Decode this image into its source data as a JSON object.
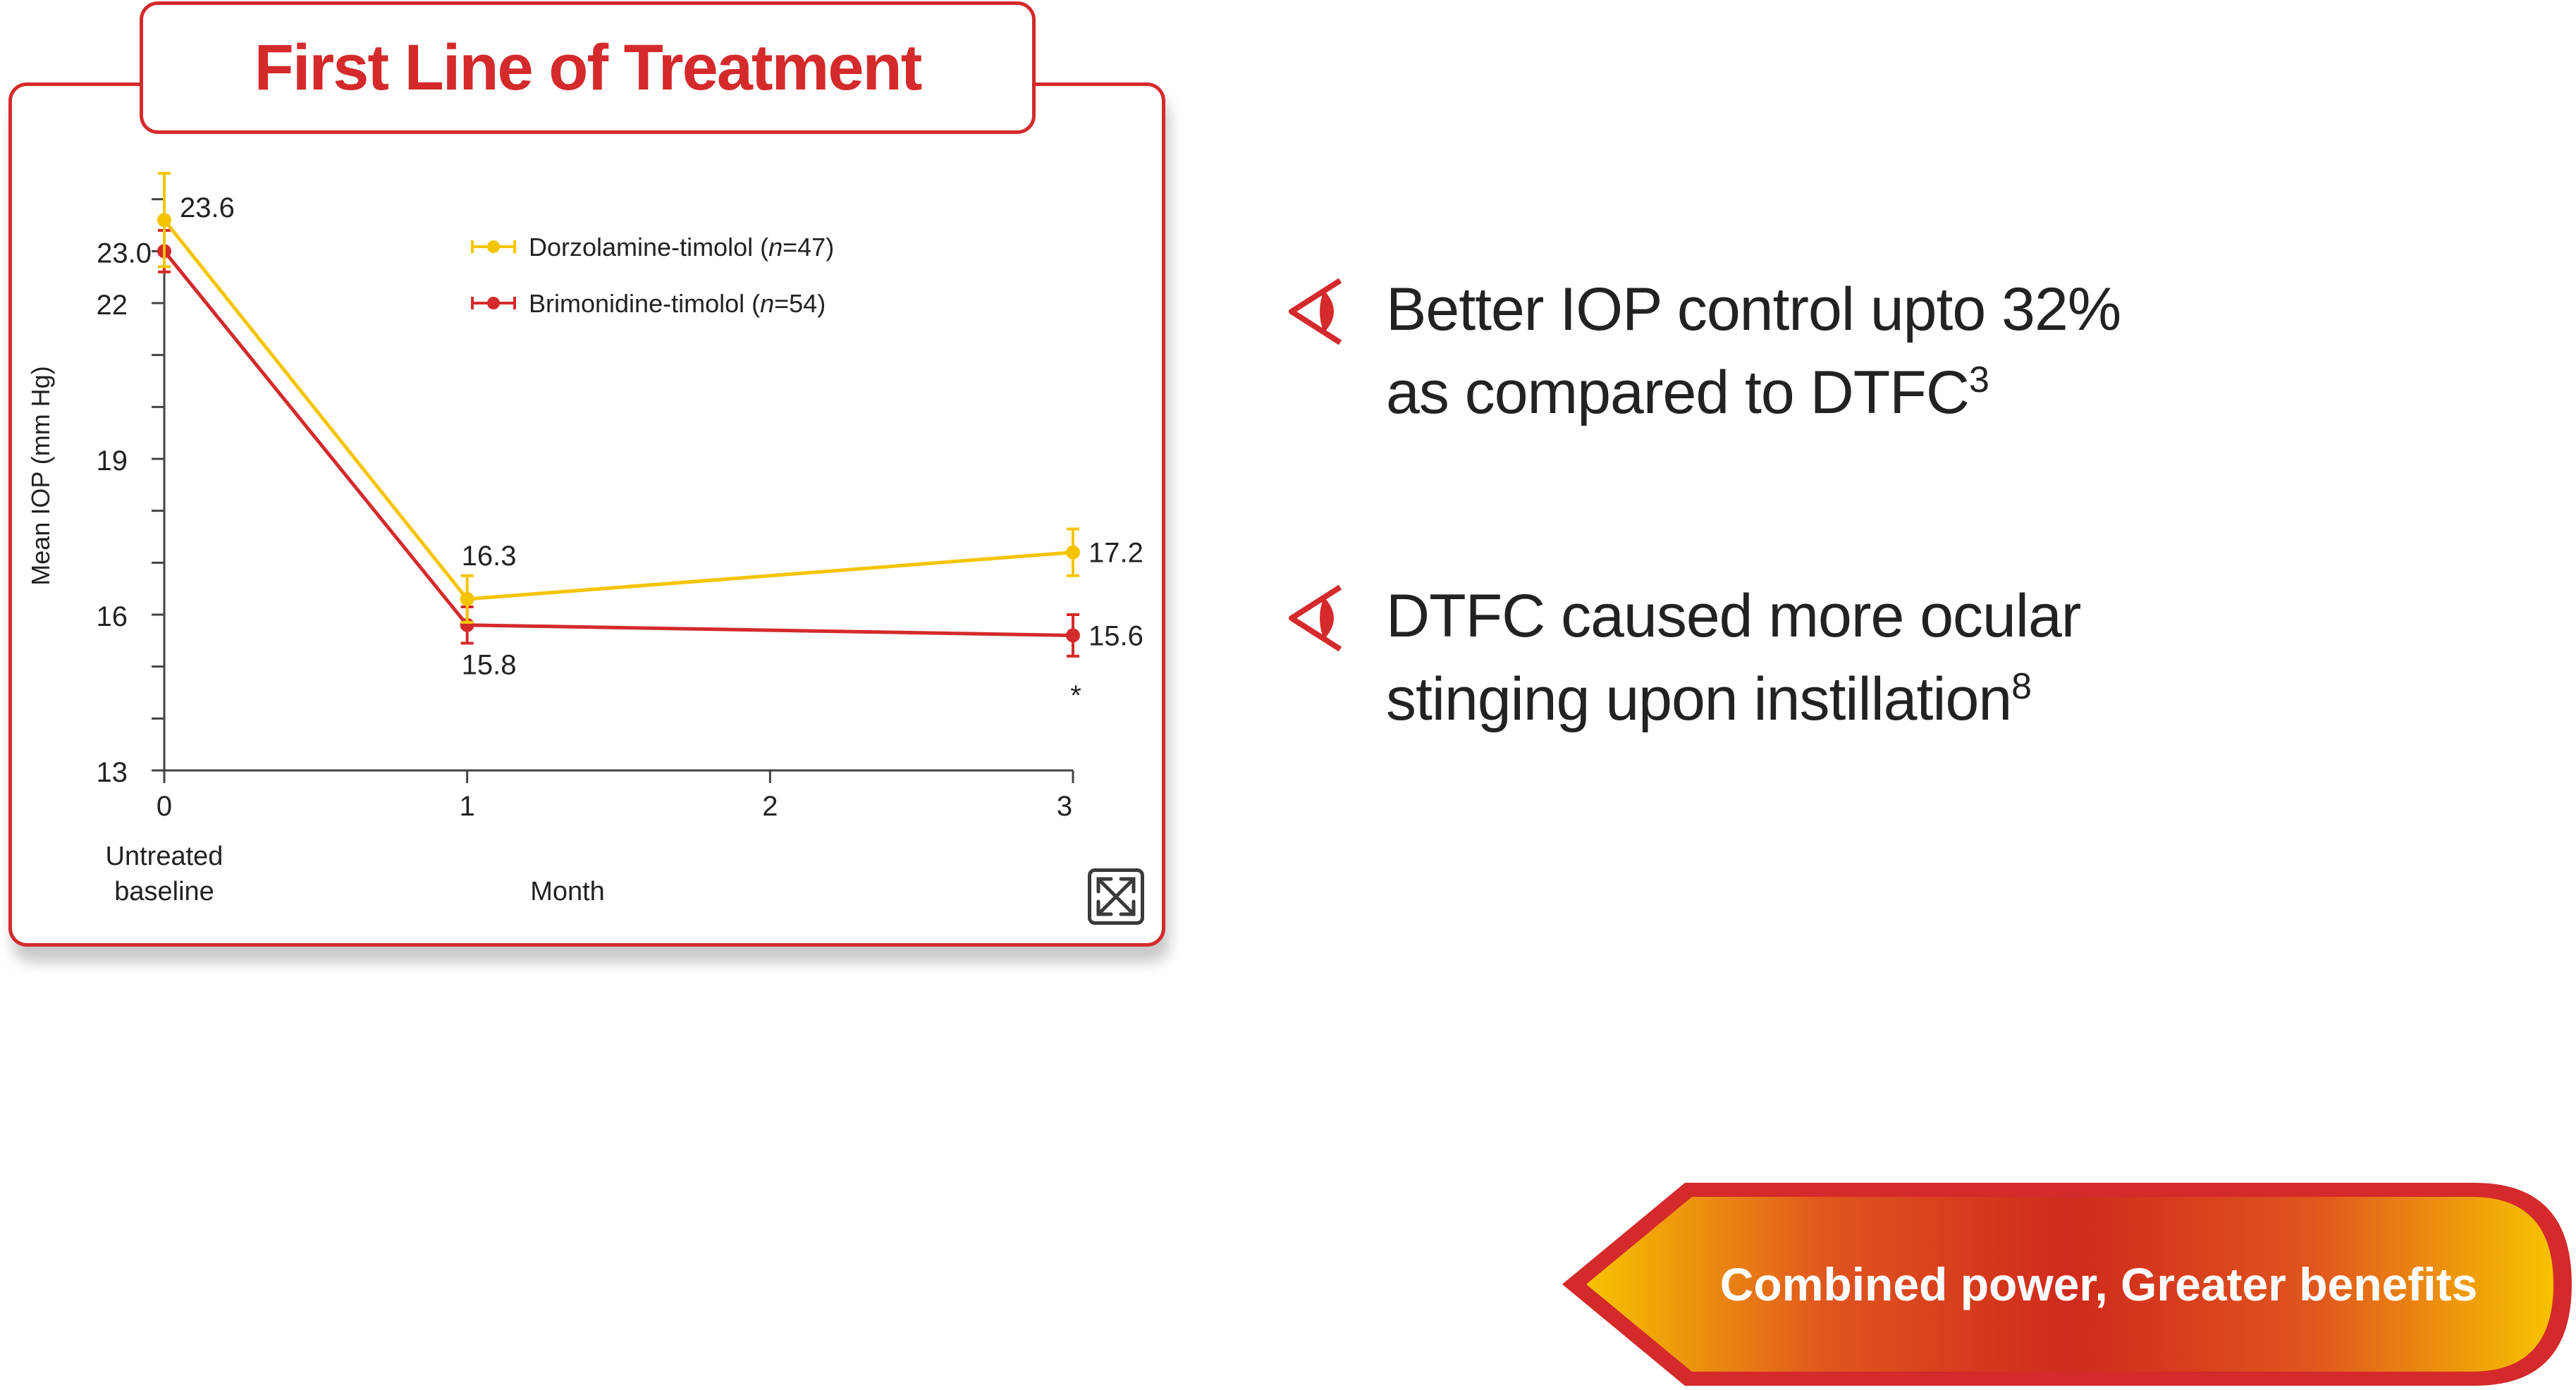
{
  "panel": {
    "title": "First Line of Treatment"
  },
  "chart_data": {
    "type": "line",
    "title": "",
    "xlabel": "Month",
    "ylabel": "Mean IOP (mm Hg)",
    "x_ticks": [
      "0",
      "1",
      "2",
      "3"
    ],
    "x_sublabel": [
      "Untreated",
      "baseline"
    ],
    "y_ticks": [
      13,
      16,
      19,
      22
    ],
    "ylim": [
      13,
      24.5
    ],
    "xlim": [
      0,
      3
    ],
    "legend_position": "top-center",
    "series": [
      {
        "name": "Dorzolamine-timolol",
        "n_label": "n",
        "n_value": "=47)",
        "color": "#f5c400",
        "x": [
          0,
          1,
          3
        ],
        "y": [
          23.6,
          16.3,
          17.2
        ],
        "labels": [
          "23.6",
          "16.3",
          "17.2"
        ],
        "error": [
          0.9,
          0.45,
          0.45
        ]
      },
      {
        "name": "Brimonidine-timolol",
        "n_label": "n",
        "n_value": "=54)",
        "color": "#d42a2b",
        "x": [
          0,
          1,
          3
        ],
        "y": [
          23.0,
          15.8,
          15.6
        ],
        "labels": [
          "23.0",
          "15.8",
          "15.6"
        ],
        "error": [
          0.4,
          0.35,
          0.4
        ]
      }
    ],
    "annotation": "*"
  },
  "bullets": [
    {
      "line1": "Better IOP control upto 32%",
      "line2": "as compared to DTFC",
      "sup": "3"
    },
    {
      "line1": "DTFC caused more ocular",
      "line2": "stinging upon instillation",
      "sup": "8"
    }
  ],
  "cta": {
    "label": "Combined power, Greater benefits"
  },
  "icons": {
    "expand": "expand-icon",
    "bullet": "eye-icon"
  }
}
